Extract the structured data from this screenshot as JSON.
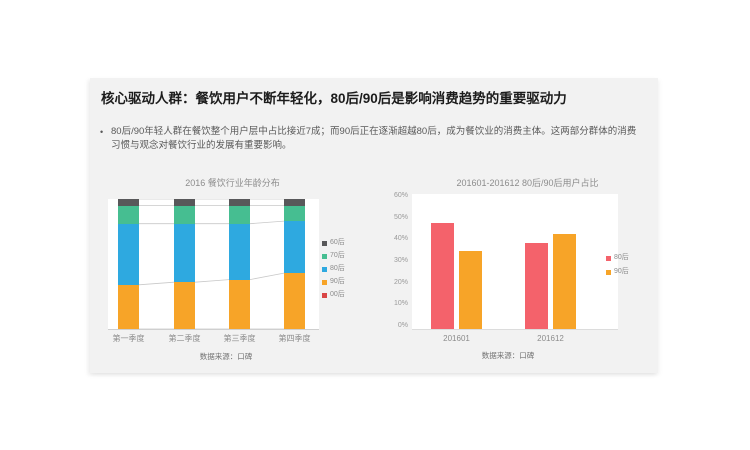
{
  "slide": {
    "background": "#f2f2f2",
    "title": "核心驱动人群：餐饮用户不断年轻化，80后/90后是影响消费趋势的重要驱动力",
    "bullet_marker": "•",
    "bullet": "80后/90年轻人群在餐饮整个用户层中占比接近7成；而90后正在逐渐超越80后，成为餐饮业的消费主体。这两部分群体的消费习惯与观念对餐饮行业的发展有重要影响。"
  },
  "chart_data": [
    {
      "type": "bar",
      "subtype": "percent-stacked-column",
      "title": "2016 餐饮行业年龄分布",
      "categories": [
        "第一季度",
        "第二季度",
        "第三季度",
        "第四季度"
      ],
      "series": [
        {
          "name": "00后",
          "color": "#D94646",
          "values": [
            0,
            0,
            0,
            0
          ]
        },
        {
          "name": "90后",
          "color": "#F7A428",
          "values": [
            34,
            36,
            38,
            43
          ]
        },
        {
          "name": "80后",
          "color": "#2EA9E0",
          "values": [
            47,
            45,
            43,
            40
          ]
        },
        {
          "name": "70后",
          "color": "#46BE91",
          "values": [
            14,
            14,
            14,
            12
          ]
        },
        {
          "name": "60后",
          "color": "#58585A",
          "values": [
            5,
            5,
            5,
            5
          ]
        }
      ],
      "stack_order": "bottom-to-top",
      "ylim": [
        0,
        100
      ],
      "grid": false,
      "series_lines": true,
      "legend_position": "right",
      "legend": [
        {
          "label": "60后",
          "color": "#58585A"
        },
        {
          "label": "70后",
          "color": "#46BE91"
        },
        {
          "label": "80后",
          "color": "#2EA9E0"
        },
        {
          "label": "90后",
          "color": "#F7A428"
        },
        {
          "label": "00后",
          "color": "#D94646"
        }
      ],
      "source": "数据来源：口碑"
    },
    {
      "type": "bar",
      "subtype": "grouped-column",
      "title": "201601-201612 80后/90后用户占比",
      "categories": [
        "201601",
        "201612"
      ],
      "series": [
        {
          "name": "80后",
          "color": "#F4626B",
          "values": [
            48,
            39
          ]
        },
        {
          "name": "90后",
          "color": "#F7A428",
          "values": [
            35,
            43
          ]
        }
      ],
      "ylim": [
        0,
        60
      ],
      "yticks": [
        "60%",
        "50%",
        "40%",
        "30%",
        "20%",
        "10%",
        "0%"
      ],
      "grid": false,
      "legend_position": "right",
      "legend": [
        {
          "label": "80后",
          "color": "#F4626B"
        },
        {
          "label": "90后",
          "color": "#F7A428"
        }
      ],
      "source": "数据来源：口碑"
    }
  ]
}
